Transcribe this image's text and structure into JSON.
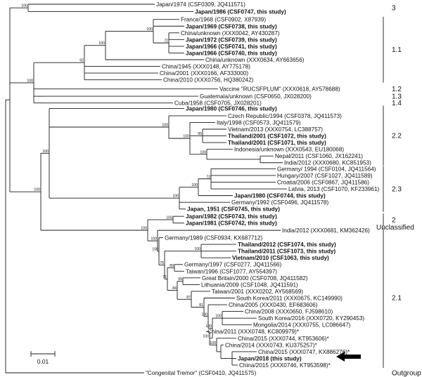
{
  "taxa": [
    {
      "id": "t1",
      "label": "Japan/1974 (CSF0309, JQ411571)",
      "bold": false
    },
    {
      "id": "t2",
      "label": "Japan/1986 (CSF0747, this study)",
      "bold": true
    },
    {
      "id": "t3",
      "label": "France/1968 (CSF0902, X87939)",
      "bold": false
    },
    {
      "id": "t4",
      "label": "Japan/1969 (CSF0738, this study)",
      "bold": true
    },
    {
      "id": "t5",
      "label": "China/unknown (XXX0042, AY430287)",
      "bold": false
    },
    {
      "id": "t6",
      "label": "Japan/1972 (CSF0739, this study)",
      "bold": true
    },
    {
      "id": "t7",
      "label": "Japan/1966 (CSF0741, this study)",
      "bold": true
    },
    {
      "id": "t8",
      "label": "Japan/1966 (CSF0740, this study)",
      "bold": true
    },
    {
      "id": "t9",
      "label": "China/unknown (XXX0634, AY663656)",
      "bold": false
    },
    {
      "id": "t10",
      "label": "China/1945 (XXX0148, AY775178)",
      "bold": false
    },
    {
      "id": "t11",
      "label": "China/2001 (XXX0166, AF333000)",
      "bold": false
    },
    {
      "id": "t12",
      "label": "China/2010 (XXX0756, HQ380242)",
      "bold": false
    },
    {
      "id": "t13",
      "label": "Vaccine \"RUCSFPLUM\" (XXX0618, AY578688)",
      "bold": false
    },
    {
      "id": "t14",
      "label": "Guatemala/unknown (CSF0650, JX028200)",
      "bold": false
    },
    {
      "id": "t15",
      "label": "Cuba/1958 (CSF0705, JX028201)",
      "bold": false
    },
    {
      "id": "t16",
      "label": "Japan/1980 (CSF0746, this study)",
      "bold": true
    },
    {
      "id": "t17",
      "label": "Czech Republic/1994 (CSF0378, JQ411573)",
      "bold": false
    },
    {
      "id": "t18",
      "label": "Italy/1998 (CSF0573, JQ411579)",
      "bold": false
    },
    {
      "id": "t19",
      "label": "Vietnam/2013 (XXX0754, LC388757)",
      "bold": false
    },
    {
      "id": "t20",
      "label": "Thailand/2001 (CSF1072, this study)",
      "bold": true
    },
    {
      "id": "t21",
      "label": "Thailand/2001 (CSF1071, this study)",
      "bold": true
    },
    {
      "id": "t22",
      "label": "Indonesia/unknown (XXX0543, EU180068)",
      "bold": false
    },
    {
      "id": "t23",
      "label": "Nepal/2011 (CSF1060, JX162241)",
      "bold": false
    },
    {
      "id": "t24",
      "label": "India/2012 (XXX0680, KC851953)",
      "bold": false
    },
    {
      "id": "t25",
      "label": "Germany/ 1994 (CSF0104, JQ411564)",
      "bold": false
    },
    {
      "id": "t26",
      "label": "Hungary/2007 (CSF1027, JQ411589)",
      "bold": false
    },
    {
      "id": "t27",
      "label": "Croatia/2006 (CSF0867, JQ411586)",
      "bold": false
    },
    {
      "id": "t28",
      "label": "Latvia, 2013 (CSF1070, KF233961)",
      "bold": false
    },
    {
      "id": "t29",
      "label": "Japan/1980 (CSF0744, this study)",
      "bold": true
    },
    {
      "id": "t30",
      "label": "Germany/1992 (CSF0496, JQ411578)",
      "bold": false
    },
    {
      "id": "t31",
      "label": "Japan, 1951 (CSF0745, this study)",
      "bold": true
    },
    {
      "id": "t32",
      "label": "Japan/1982 (CSF0743, this study)",
      "bold": true
    },
    {
      "id": "t33",
      "label": "Japan/1981 (CSF0742, this study)",
      "bold": true
    },
    {
      "id": "t34",
      "label": "India/2012 (XXX0681, KM362426)",
      "bold": false
    },
    {
      "id": "t35",
      "label": "Germany/1989 (CSF0934, KX687712)",
      "bold": false
    },
    {
      "id": "t36",
      "label": "Thailand/2012 (CSF1074, this study)",
      "bold": true
    },
    {
      "id": "t37",
      "label": "Thailand/2011 (CSF1073, this study)",
      "bold": true
    },
    {
      "id": "t38",
      "label": "Vietnam/2010 (CSF1063, this study)",
      "bold": true
    },
    {
      "id": "t39",
      "label": "Germany/1997 (CSF0277, JQ411566)",
      "bold": false
    },
    {
      "id": "t40",
      "label": "Taiwan/1996 (CSF1077, AY554397)",
      "bold": false
    },
    {
      "id": "t41",
      "label": "Great Britain/2000 (CSF0708, JQ411582)",
      "bold": false
    },
    {
      "id": "t42",
      "label": "Lithuania/2009 (CSF1048, JQ411591)",
      "bold": false
    },
    {
      "id": "t43",
      "label": "Taiwan/2001 (XXX0202, AY568569)",
      "bold": false
    },
    {
      "id": "t44",
      "label": "South Korea/2011 (XXX0675, KC149990)",
      "bold": false
    },
    {
      "id": "t45",
      "label": "China/2005 (XXX0430, EF683606)",
      "bold": false
    },
    {
      "id": "t46",
      "label": "China/2008 (XXX0650, FJ598610)",
      "bold": false
    },
    {
      "id": "t47",
      "label": "South Korea/2016 (XXX0720, KY290453)",
      "bold": false
    },
    {
      "id": "t48",
      "label": "Mongolia/2014 (XXX0755, LC086647)",
      "bold": false
    },
    {
      "id": "t49",
      "label": "China/2011 (XXX0748, KC809979)*",
      "bold": false
    },
    {
      "id": "t50",
      "label": "China/2015 (XXX0744, KT953606)*",
      "bold": false
    },
    {
      "id": "t51",
      "label": "China/2014 (XXX0743, KU375257)*",
      "bold": false
    },
    {
      "id": "t52",
      "label": "China/2015 (XXX0747, KX886276)*",
      "bold": false
    },
    {
      "id": "t53",
      "label": "Japan/2018 (this study)",
      "bold": true
    },
    {
      "id": "t54",
      "label": "China/2015 (XXX0746, KT953598)*",
      "bold": false
    },
    {
      "id": "t55",
      "label": "\"Congenital Tremor\" (CSF0410, JQ411575)",
      "bold": false
    }
  ],
  "bootstrap_values": [
    "100",
    "100",
    "72",
    "100",
    "92",
    "100",
    "100",
    "100",
    "100",
    "95",
    "100",
    "100",
    "100",
    "73",
    "100",
    "100",
    "100",
    "100",
    "100",
    "76",
    "71",
    "89",
    "84",
    "99",
    "100",
    "87",
    "81",
    "100",
    "100",
    "100",
    "100",
    "100"
  ],
  "groups": [
    {
      "id": "g3",
      "label": "3"
    },
    {
      "id": "g11",
      "label": "1.1"
    },
    {
      "id": "g12",
      "label": "1.2"
    },
    {
      "id": "g13",
      "label": "1.3"
    },
    {
      "id": "g14",
      "label": "1.4"
    },
    {
      "id": "g22",
      "label": "2.2"
    },
    {
      "id": "g23",
      "label": "2.3"
    },
    {
      "id": "g2",
      "label": "2"
    },
    {
      "id": "gun",
      "label": "Unclassified"
    },
    {
      "id": "g21",
      "label": "2.1"
    },
    {
      "id": "gout",
      "label": "Outgroup"
    }
  ],
  "scale_bar": {
    "label": "0.01"
  },
  "highlight_arrow": {
    "target_label": "Japan/2018 (this study)",
    "icon": "left-arrow-icon"
  }
}
